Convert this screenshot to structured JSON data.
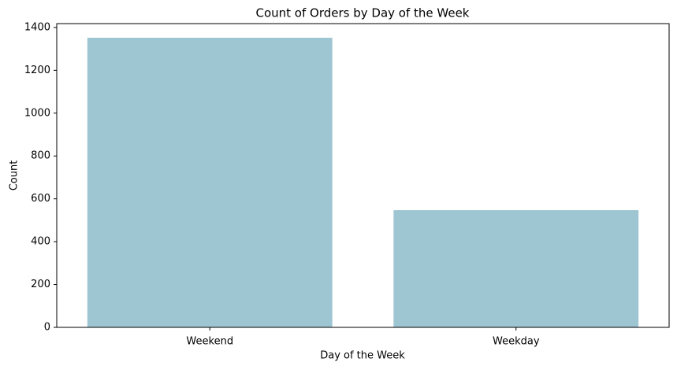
{
  "chart_data": {
    "type": "bar",
    "title": "Count of Orders by Day of the Week",
    "x_label": "Day of the Week",
    "y_label": "Count",
    "categories": [
      "Weekend",
      "Weekday"
    ],
    "values": [
      1352,
      547
    ],
    "color": "#9dc5d2",
    "ylim": [
      0,
      1418
    ],
    "yticks": [
      0,
      200,
      400,
      600,
      800,
      1000,
      1200,
      1400
    ],
    "grid": false
  }
}
